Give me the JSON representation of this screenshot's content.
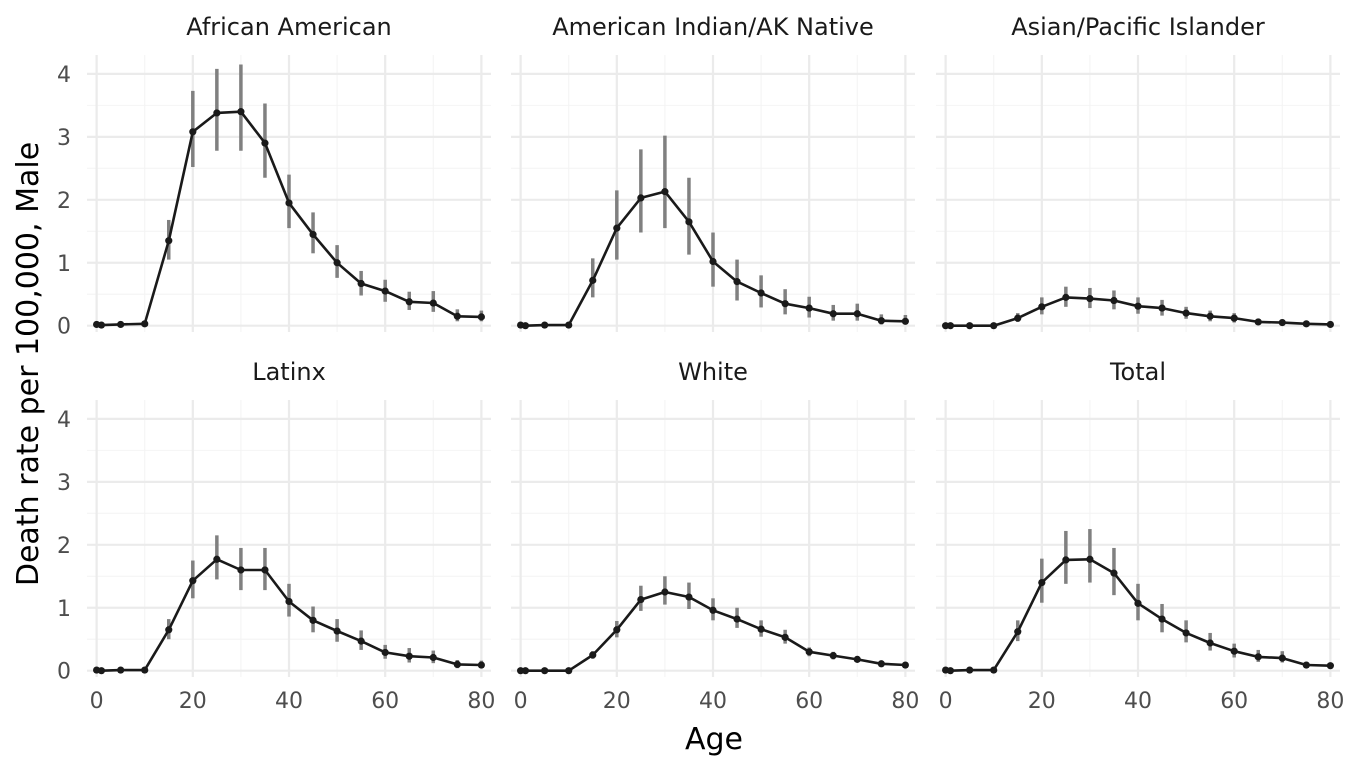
{
  "chart_data": {
    "type": "line",
    "layout": "facet_wrap 2 rows x 3 columns, shared axes",
    "xlabel": "Age",
    "ylabel": "Death rate per 100,000, Male",
    "xlim": [
      -2,
      82
    ],
    "ylim": [
      -0.1,
      4.3
    ],
    "x_ticks": [
      0,
      20,
      40,
      60,
      80
    ],
    "y_ticks": [
      0,
      1,
      2,
      3,
      4
    ],
    "grid": true,
    "line_color": "#1a1a1a",
    "errorbar_color": "#808080",
    "x": [
      0,
      1,
      5,
      10,
      15,
      20,
      25,
      30,
      35,
      40,
      45,
      50,
      55,
      60,
      65,
      70,
      75,
      80
    ],
    "panels": [
      {
        "name": "African American",
        "y": [
          0.02,
          0.01,
          0.02,
          0.03,
          1.35,
          3.08,
          3.38,
          3.4,
          2.9,
          1.95,
          1.45,
          1.0,
          0.67,
          0.55,
          0.38,
          0.36,
          0.15,
          0.14
        ],
        "lo": [
          0.0,
          0.0,
          0.0,
          0.0,
          1.05,
          2.52,
          2.78,
          2.78,
          2.35,
          1.55,
          1.15,
          0.76,
          0.48,
          0.38,
          0.25,
          0.22,
          0.07,
          0.07
        ],
        "hi": [
          0.05,
          0.03,
          0.05,
          0.06,
          1.68,
          3.73,
          4.08,
          4.15,
          3.53,
          2.4,
          1.8,
          1.28,
          0.87,
          0.73,
          0.54,
          0.55,
          0.26,
          0.24
        ]
      },
      {
        "name": "American Indian/AK Native",
        "y": [
          0.01,
          0.0,
          0.01,
          0.01,
          0.72,
          1.55,
          2.03,
          2.13,
          1.65,
          1.02,
          0.7,
          0.52,
          0.35,
          0.28,
          0.19,
          0.19,
          0.08,
          0.07
        ],
        "lo": [
          0.0,
          0.0,
          0.0,
          0.0,
          0.45,
          1.05,
          1.48,
          1.55,
          1.13,
          0.62,
          0.4,
          0.29,
          0.18,
          0.13,
          0.08,
          0.08,
          0.02,
          0.02
        ],
        "hi": [
          0.03,
          0.02,
          0.03,
          0.03,
          1.07,
          2.15,
          2.8,
          3.02,
          2.35,
          1.48,
          1.05,
          0.8,
          0.58,
          0.46,
          0.33,
          0.35,
          0.18,
          0.17
        ]
      },
      {
        "name": "Asian/Pacific Islander",
        "y": [
          0.0,
          0.0,
          0.0,
          0.0,
          0.12,
          0.3,
          0.45,
          0.43,
          0.4,
          0.31,
          0.28,
          0.2,
          0.15,
          0.12,
          0.06,
          0.05,
          0.03,
          0.02
        ],
        "lo": [
          0.0,
          0.0,
          0.0,
          0.0,
          0.06,
          0.18,
          0.3,
          0.28,
          0.26,
          0.19,
          0.16,
          0.11,
          0.07,
          0.05,
          0.02,
          0.02,
          0.0,
          0.0
        ],
        "hi": [
          0.02,
          0.01,
          0.01,
          0.02,
          0.2,
          0.45,
          0.62,
          0.6,
          0.56,
          0.45,
          0.41,
          0.3,
          0.24,
          0.2,
          0.11,
          0.1,
          0.06,
          0.05
        ]
      },
      {
        "name": "Latinx",
        "y": [
          0.01,
          0.0,
          0.01,
          0.01,
          0.65,
          1.43,
          1.77,
          1.6,
          1.6,
          1.1,
          0.8,
          0.63,
          0.47,
          0.29,
          0.23,
          0.21,
          0.1,
          0.09
        ],
        "lo": [
          0.0,
          0.0,
          0.0,
          0.0,
          0.5,
          1.15,
          1.45,
          1.28,
          1.28,
          0.86,
          0.61,
          0.46,
          0.33,
          0.19,
          0.13,
          0.12,
          0.04,
          0.04
        ],
        "hi": [
          0.02,
          0.01,
          0.02,
          0.02,
          0.82,
          1.75,
          2.15,
          1.95,
          1.95,
          1.38,
          1.02,
          0.82,
          0.64,
          0.41,
          0.36,
          0.32,
          0.17,
          0.16
        ]
      },
      {
        "name": "White",
        "y": [
          0.0,
          0.0,
          0.0,
          0.0,
          0.25,
          0.65,
          1.13,
          1.25,
          1.17,
          0.96,
          0.82,
          0.66,
          0.53,
          0.3,
          0.24,
          0.18,
          0.11,
          0.09
        ],
        "lo": [
          0.0,
          0.0,
          0.0,
          0.0,
          0.19,
          0.53,
          0.95,
          1.05,
          0.98,
          0.8,
          0.68,
          0.54,
          0.43,
          0.23,
          0.18,
          0.13,
          0.07,
          0.06
        ],
        "hi": [
          0.01,
          0.01,
          0.01,
          0.01,
          0.31,
          0.79,
          1.35,
          1.5,
          1.4,
          1.15,
          1.0,
          0.8,
          0.65,
          0.37,
          0.3,
          0.23,
          0.14,
          0.12
        ]
      },
      {
        "name": "Total",
        "y": [
          0.01,
          0.0,
          0.01,
          0.01,
          0.62,
          1.4,
          1.76,
          1.77,
          1.55,
          1.07,
          0.82,
          0.6,
          0.44,
          0.31,
          0.22,
          0.2,
          0.09,
          0.08
        ],
        "lo": [
          0.0,
          0.0,
          0.0,
          0.0,
          0.47,
          1.08,
          1.38,
          1.4,
          1.2,
          0.8,
          0.61,
          0.45,
          0.32,
          0.21,
          0.14,
          0.13,
          0.05,
          0.04
        ],
        "hi": [
          0.02,
          0.01,
          0.02,
          0.02,
          0.8,
          1.78,
          2.22,
          2.25,
          1.95,
          1.38,
          1.06,
          0.8,
          0.6,
          0.43,
          0.33,
          0.31,
          0.14,
          0.13
        ]
      }
    ]
  }
}
